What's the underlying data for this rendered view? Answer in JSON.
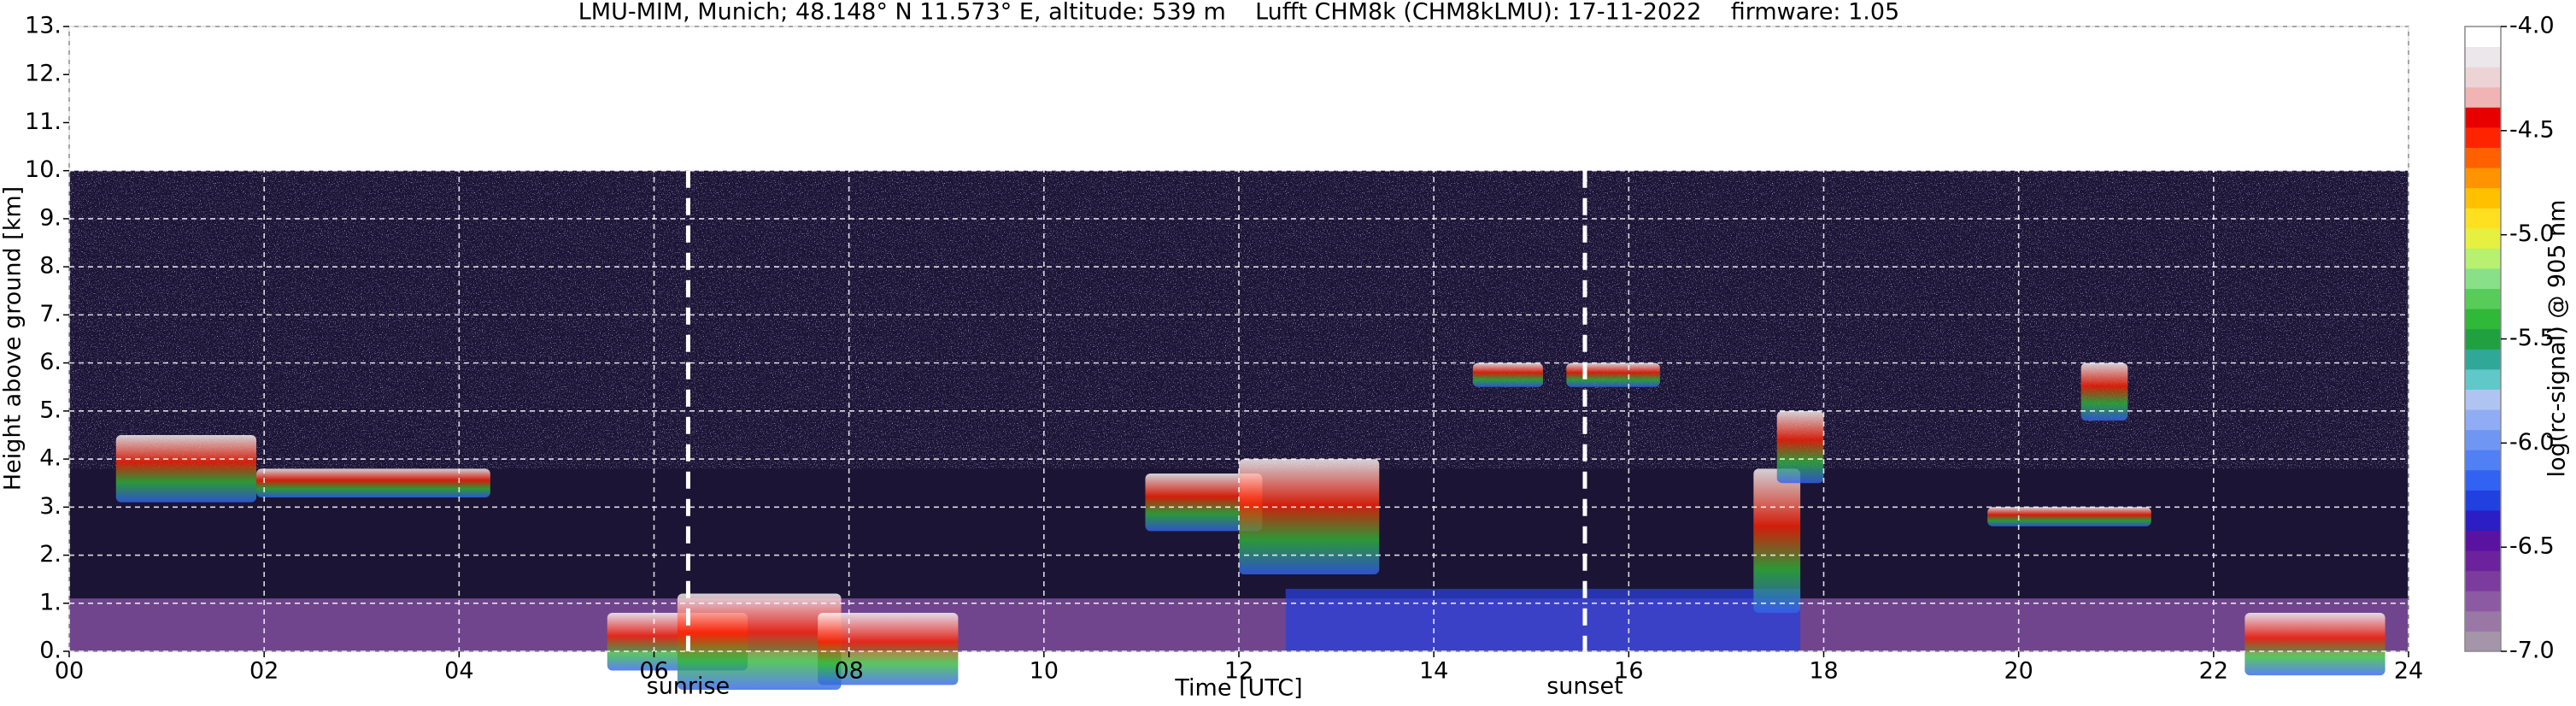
{
  "chart_data": {
    "type": "heatmap",
    "title": "LMU-MIM, Munich; 48.148° N 11.573° E, altitude: 539 m    Lufft CHM8k (CHM8kLMU): 17-11-2022    firmware: 1.05",
    "xlabel": "Time [UTC]",
    "ylabel": "Height above ground [km]",
    "xlim": [
      0,
      24
    ],
    "xticks": [
      {
        "value": 0,
        "label": "00"
      },
      {
        "value": 2,
        "label": "02"
      },
      {
        "value": 4,
        "label": "04"
      },
      {
        "value": 6,
        "label": "06"
      },
      {
        "value": 8,
        "label": "08"
      },
      10,
      12,
      14,
      16,
      18,
      20,
      22,
      24
    ],
    "ylim": [
      0,
      13
    ],
    "yticks": [
      {
        "value": 0,
        "label": "0."
      },
      {
        "value": 1,
        "label": "1."
      },
      {
        "value": 2,
        "label": "2."
      },
      {
        "value": 3,
        "label": "3."
      },
      {
        "value": 4,
        "label": "4."
      },
      {
        "value": 5,
        "label": "5."
      },
      {
        "value": 6,
        "label": "6."
      },
      {
        "value": 7,
        "label": "7."
      },
      {
        "value": 8,
        "label": "8."
      },
      {
        "value": 9,
        "label": "9."
      },
      {
        "value": 10,
        "label": "10."
      },
      {
        "value": 11,
        "label": "11."
      },
      {
        "value": 12,
        "label": "12."
      },
      {
        "value": 13,
        "label": "13."
      }
    ],
    "data_ylim": [
      0,
      10
    ],
    "grid": true,
    "colorbar_label": "log(rc-signal) @ 905 nm",
    "clim": [
      -7,
      -4
    ],
    "cticks": [
      {
        "value": -7,
        "label": "-7.0"
      },
      -6.5,
      {
        "value": -6,
        "label": "-6.0"
      },
      -5.5,
      {
        "value": -5,
        "label": "-5.0"
      },
      -4.5,
      {
        "value": -4,
        "label": "-4.0"
      }
    ],
    "colormap": [
      "#a595a8",
      "#9a78a6",
      "#8c5aa2",
      "#7c3c9e",
      "#6c229c",
      "#5a12a0",
      "#2a1ec4",
      "#2040e0",
      "#3262f2",
      "#5080f4",
      "#7096f4",
      "#90acf4",
      "#b0c4f2",
      "#60c8c8",
      "#30a898",
      "#20a040",
      "#30b838",
      "#58cc58",
      "#88e088",
      "#b8f070",
      "#e6f040",
      "#ffe020",
      "#ffc000",
      "#ff9400",
      "#ff6000",
      "#ff2400",
      "#e80000",
      "#f0b4b4",
      "#ecd4d6",
      "#ebe7ea",
      "#ffffff"
    ],
    "annotations": [
      {
        "text": "sunrise",
        "x": 6.35
      },
      {
        "text": "sunset",
        "x": 15.55
      }
    ]
  }
}
